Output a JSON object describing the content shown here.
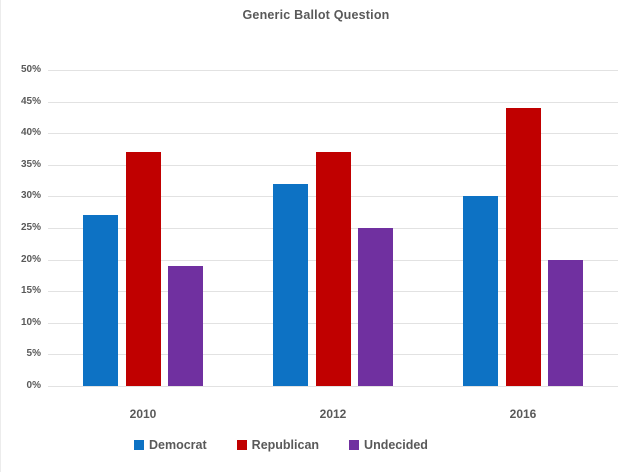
{
  "chart_data": {
    "type": "bar",
    "title": "Generic Ballot Question",
    "categories": [
      "2010",
      "2012",
      "2016"
    ],
    "series": [
      {
        "name": "Democrat",
        "color": "#0D72C4",
        "values": [
          27,
          32,
          30
        ]
      },
      {
        "name": "Republican",
        "color": "#C00000",
        "values": [
          37,
          37,
          44
        ]
      },
      {
        "name": "Undecided",
        "color": "#7030A0",
        "values": [
          19,
          25,
          20
        ]
      }
    ],
    "xlabel": "",
    "ylabel": "",
    "ylim": [
      0,
      50
    ],
    "ytick_step": 5,
    "ytick_labels": [
      "0%",
      "5%",
      "10%",
      "15%",
      "20%",
      "25%",
      "30%",
      "35%",
      "40%",
      "45%",
      "50%"
    ],
    "grid": true,
    "gridline_color": "#e2e2e2",
    "text_color": "#595959",
    "legend_position": "bottom"
  }
}
